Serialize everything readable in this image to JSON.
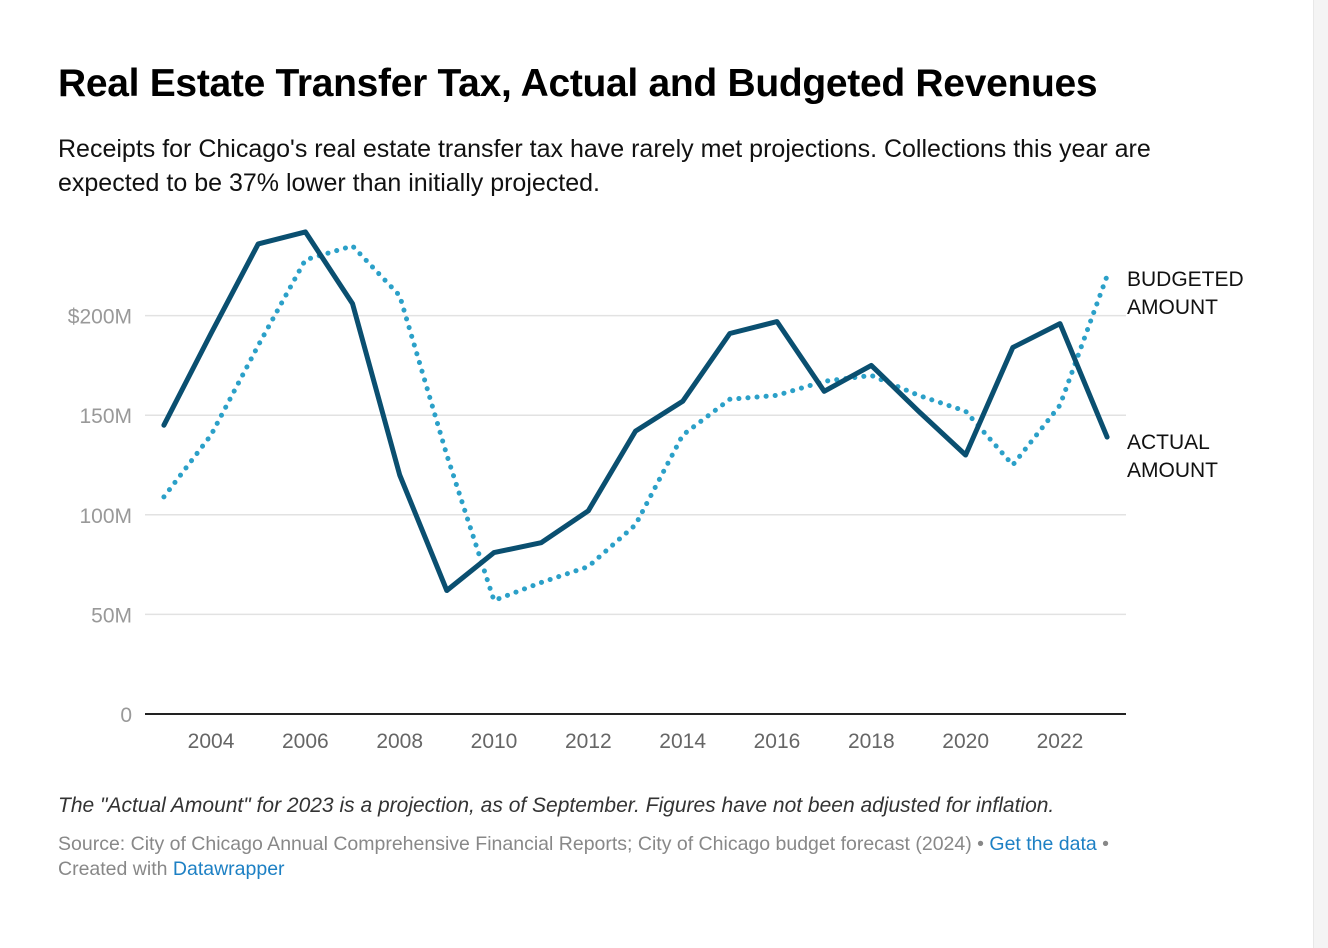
{
  "header": {
    "title": "Real Estate Transfer Tax, Actual and Budgeted Revenues",
    "subtitle": "Receipts for Chicago's real estate transfer tax have rarely met projections. Collections this year are expected to be 37% lower than initially projected."
  },
  "footer": {
    "note": "The \"Actual Amount\" for 2023 is a projection, as of September. Figures have not been adjusted for inflation.",
    "source": "Source: City of Chicago Annual Comprehensive Financial Reports; City of Chicago budget forecast (2024)",
    "get_data_label": "Get the data",
    "created_with": "Created with",
    "datawrapper_label": "Datawrapper",
    "separator": " • "
  },
  "colors": {
    "actual": "#0a4f70",
    "budgeted": "#2ba0c8",
    "grid": "#e2e2e2",
    "axis": "#222222"
  },
  "chart_data": {
    "type": "line",
    "title": "Real Estate Transfer Tax, Actual and Budgeted Revenues",
    "x": [
      2003,
      2004,
      2005,
      2006,
      2007,
      2008,
      2009,
      2010,
      2011,
      2012,
      2013,
      2014,
      2015,
      2016,
      2017,
      2018,
      2019,
      2020,
      2021,
      2022,
      2023
    ],
    "series": [
      {
        "name": "BUDGETED AMOUNT",
        "label_lines": [
          "BUDGETED",
          "AMOUNT"
        ],
        "style": "dotted",
        "color": "#2ba0c8",
        "values": [
          109,
          140,
          185,
          228,
          235,
          210,
          130,
          57,
          66,
          74,
          95,
          140,
          158,
          160,
          167,
          170,
          160,
          152,
          125,
          155,
          220
        ]
      },
      {
        "name": "ACTUAL AMOUNT",
        "label_lines": [
          "ACTUAL",
          "AMOUNT"
        ],
        "style": "solid",
        "color": "#0a4f70",
        "values": [
          145,
          191,
          236,
          242,
          206,
          120,
          62,
          81,
          86,
          102,
          142,
          157,
          191,
          197,
          162,
          175,
          152,
          130,
          184,
          196,
          139
        ]
      }
    ],
    "yticks": [
      0,
      50,
      100,
      150,
      200
    ],
    "ytick_labels": [
      "0",
      "50M",
      "100M",
      "150M",
      "$200M"
    ],
    "xticks": [
      2004,
      2006,
      2008,
      2010,
      2012,
      2014,
      2016,
      2018,
      2020,
      2022
    ],
    "xtick_labels": [
      "2004",
      "2006",
      "2008",
      "2010",
      "2012",
      "2014",
      "2016",
      "2018",
      "2020",
      "2022"
    ],
    "ylim": [
      0,
      250
    ],
    "xlim": [
      2002.6,
      2023.4
    ],
    "grid": true,
    "xlabel": "",
    "ylabel": ""
  }
}
